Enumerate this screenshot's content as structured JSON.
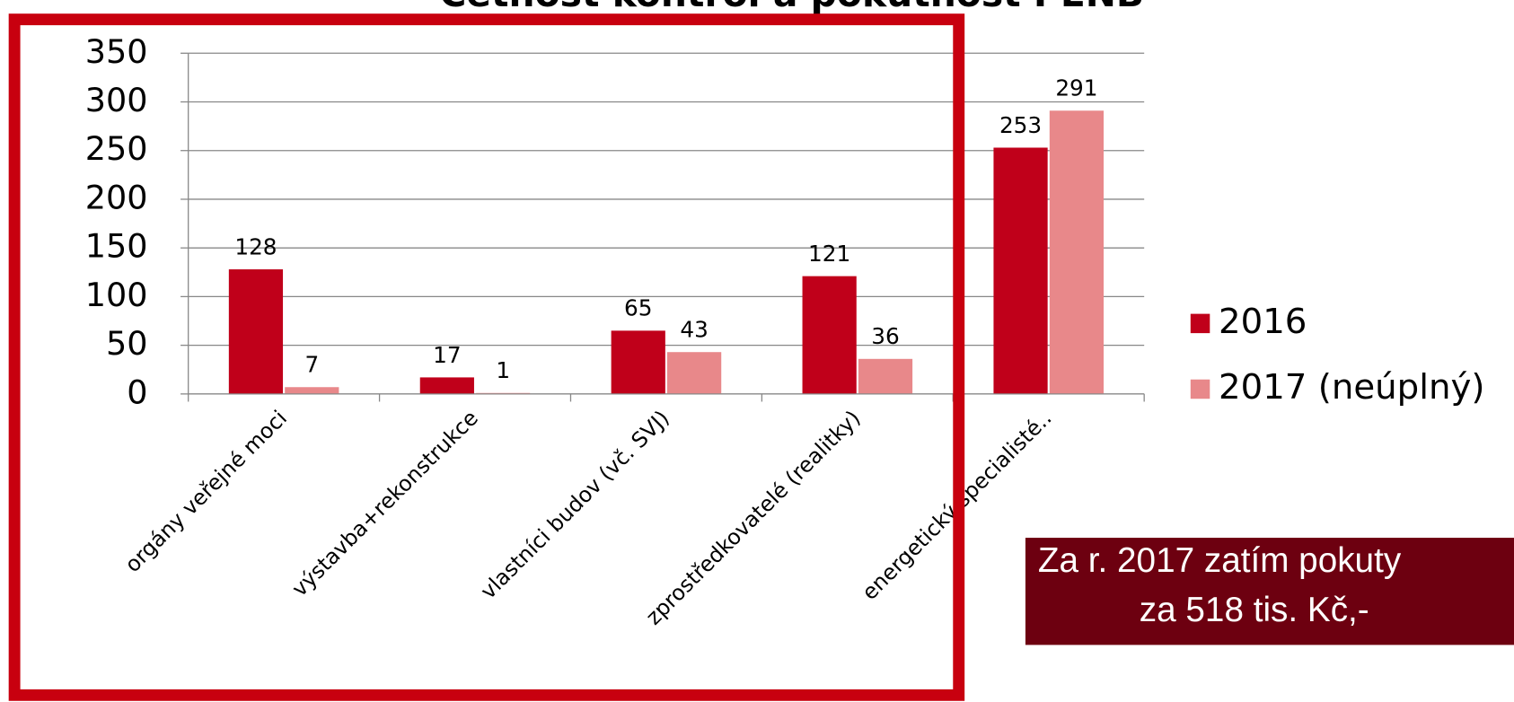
{
  "chart_data": {
    "type": "bar",
    "title": "Četnost kontrol a pokutnost PENB",
    "categories": [
      "orgány veřejné moci",
      "výstavba+rekonstrukce",
      "vlastníci budov (vč. SVJ)",
      "zprostředkovatelé (realitky)",
      "energetický specialisté.."
    ],
    "series": [
      {
        "name": "2016",
        "color": "#c0001a",
        "values": [
          128,
          17,
          65,
          121,
          253
        ]
      },
      {
        "name": "2017 (neúplný)",
        "color": "#e8888a",
        "values": [
          7,
          1,
          43,
          36,
          291
        ]
      }
    ],
    "ylim": [
      0,
      350
    ],
    "yticks": [
      0,
      50,
      100,
      150,
      200,
      250,
      300,
      350
    ],
    "grid": true,
    "legend": "right",
    "annotation": [
      "Za r. 2017 zatím pokuty",
      "za 518 tis.  Kč,-"
    ]
  }
}
